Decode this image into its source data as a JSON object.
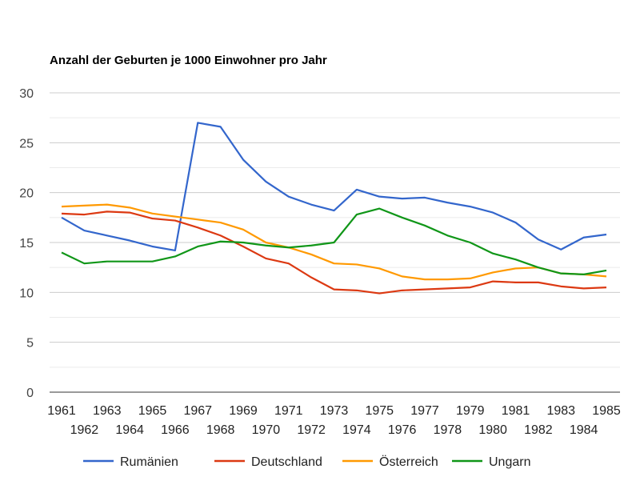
{
  "chart_data": {
    "type": "line",
    "title": "Anzahl der Geburten je 1000 Einwohner pro Jahr",
    "xlabel": "",
    "ylabel": "",
    "ylim": [
      0,
      30
    ],
    "yticks": [
      "0",
      "5",
      "10",
      "15",
      "20",
      "25",
      "30"
    ],
    "x": [
      "1961",
      "1962",
      "1963",
      "1964",
      "1965",
      "1966",
      "1967",
      "1968",
      "1969",
      "1970",
      "1971",
      "1972",
      "1973",
      "1974",
      "1975",
      "1976",
      "1977",
      "1978",
      "1979",
      "1980",
      "1981",
      "1982",
      "1983",
      "1984",
      "1985"
    ],
    "grid": true,
    "legend_position": "bottom",
    "series": [
      {
        "name": "Rumänien",
        "color": "#3366cc",
        "values": [
          17.5,
          16.2,
          15.7,
          15.2,
          14.6,
          14.2,
          27.0,
          26.6,
          23.3,
          21.1,
          19.6,
          18.8,
          18.2,
          20.3,
          19.6,
          19.4,
          19.5,
          19.0,
          18.6,
          18.0,
          17.0,
          15.3,
          14.3,
          15.5,
          15.8
        ]
      },
      {
        "name": "Deutschland",
        "color": "#dc3912",
        "values": [
          17.9,
          17.8,
          18.1,
          18.0,
          17.4,
          17.2,
          16.5,
          15.7,
          14.6,
          13.4,
          12.9,
          11.5,
          10.3,
          10.2,
          9.9,
          10.2,
          10.3,
          10.4,
          10.5,
          11.1,
          11.0,
          11.0,
          10.6,
          10.4,
          10.5
        ]
      },
      {
        "name": "Österreich",
        "color": "#ff9900",
        "values": [
          18.6,
          18.7,
          18.8,
          18.5,
          17.9,
          17.6,
          17.3,
          17.0,
          16.3,
          15.0,
          14.5,
          13.8,
          12.9,
          12.8,
          12.4,
          11.6,
          11.3,
          11.3,
          11.4,
          12.0,
          12.4,
          12.5,
          11.9,
          11.8,
          11.6
        ]
      },
      {
        "name": "Ungarn",
        "color": "#109618",
        "values": [
          14.0,
          12.9,
          13.1,
          13.1,
          13.1,
          13.6,
          14.6,
          15.1,
          15.0,
          14.7,
          14.5,
          14.7,
          15.0,
          17.8,
          18.4,
          17.5,
          16.7,
          15.7,
          15.0,
          13.9,
          13.3,
          12.5,
          11.9,
          11.8,
          12.2
        ]
      }
    ]
  }
}
